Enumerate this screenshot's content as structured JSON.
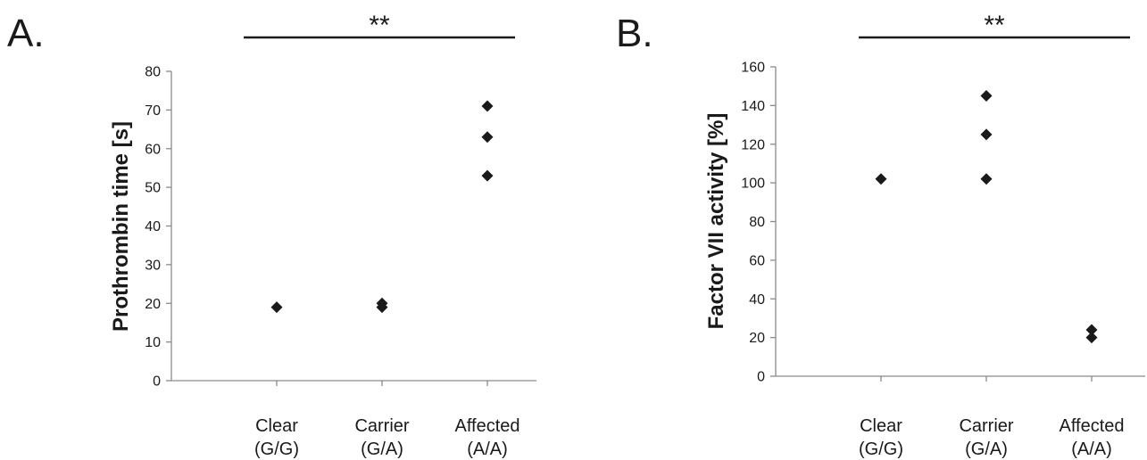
{
  "chart_data": [
    {
      "type": "scatter",
      "panel_label": "A.",
      "significance": "**",
      "ylabel": "Prothrombin time [s]",
      "ylim": [
        0,
        80
      ],
      "yticks": [
        0,
        10,
        20,
        30,
        40,
        50,
        60,
        70,
        80
      ],
      "categories": [
        {
          "line1": "Clear",
          "line2": "(G/G)"
        },
        {
          "line1": "Carrier",
          "line2": "(G/A)"
        },
        {
          "line1": "Affected",
          "line2": "(A/A)"
        }
      ],
      "points": [
        {
          "category": 0,
          "y": 19
        },
        {
          "category": 1,
          "y": 19
        },
        {
          "category": 1,
          "y": 20
        },
        {
          "category": 2,
          "y": 53
        },
        {
          "category": 2,
          "y": 63
        },
        {
          "category": 2,
          "y": 71
        }
      ],
      "marker_color": "#1a1a1a",
      "grid": false,
      "legend": false
    },
    {
      "type": "scatter",
      "panel_label": "B.",
      "significance": "**",
      "ylabel": "Factor VII activity [%]",
      "ylim": [
        0,
        160
      ],
      "yticks": [
        0,
        20,
        40,
        60,
        80,
        100,
        120,
        140,
        160
      ],
      "categories": [
        {
          "line1": "Clear",
          "line2": "(G/G)"
        },
        {
          "line1": "Carrier",
          "line2": "(G/A)"
        },
        {
          "line1": "Affected",
          "line2": "(A/A)"
        }
      ],
      "points": [
        {
          "category": 0,
          "y": 102
        },
        {
          "category": 1,
          "y": 102
        },
        {
          "category": 1,
          "y": 125
        },
        {
          "category": 1,
          "y": 145
        },
        {
          "category": 2,
          "y": 20
        },
        {
          "category": 2,
          "y": 24
        }
      ],
      "marker_color": "#1a1a1a",
      "grid": false,
      "legend": false
    }
  ]
}
